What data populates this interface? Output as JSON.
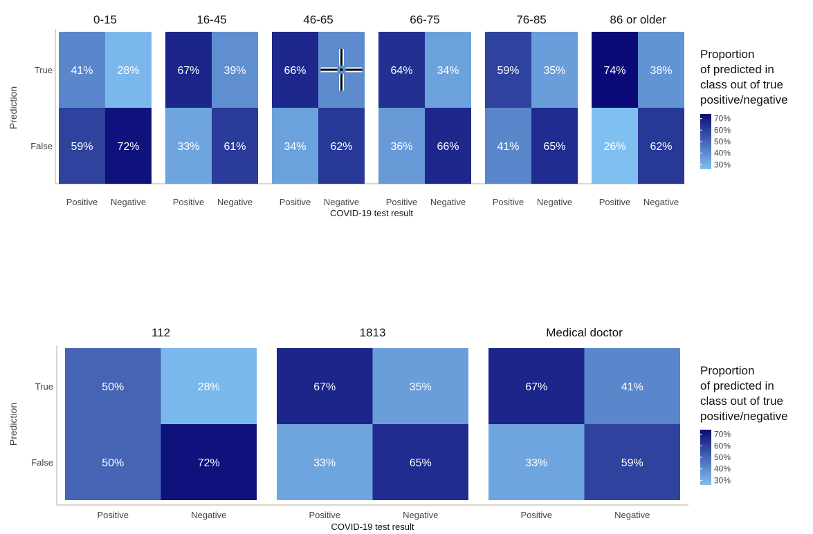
{
  "colors": {
    "scale_low": "#7fc0f0",
    "scale_high": "#0a0a78",
    "cell_text": "#ffffff",
    "axis_line": "#cfc8b8",
    "text": "#444444",
    "title_text": "#111111"
  },
  "shared": {
    "y_axis_title": "Prediction",
    "y_categories": [
      "True",
      "False"
    ],
    "legend_title": "Proportion\nof predicted in\n class out of true\npositive/negative",
    "legend_ticks": [
      "70%",
      "60%",
      "50%",
      "40%",
      "30%"
    ],
    "legend_range": [
      26,
      74
    ]
  },
  "chart_data": [
    {
      "type": "heatmap",
      "x_axis_title": "COVID-19 test result",
      "y_axis_title": "Prediction",
      "x_categories": [
        "Positive",
        "Negative"
      ],
      "y_categories": [
        "True",
        "False"
      ],
      "facets": [
        {
          "title": "0-15",
          "values": [
            [
              41,
              28
            ],
            [
              59,
              72
            ]
          ]
        },
        {
          "title": "16-45",
          "values": [
            [
              67,
              39
            ],
            [
              33,
              61
            ]
          ]
        },
        {
          "title": "46-65",
          "values": [
            [
              66,
              null
            ],
            [
              34,
              62
            ]
          ]
        },
        {
          "title": "66-75",
          "values": [
            [
              64,
              34
            ],
            [
              36,
              66
            ]
          ]
        },
        {
          "title": "76-85",
          "values": [
            [
              59,
              35
            ],
            [
              41,
              65
            ]
          ]
        },
        {
          "title": "86 or older",
          "values": [
            [
              74,
              38
            ],
            [
              26,
              62
            ]
          ]
        }
      ]
    },
    {
      "type": "heatmap",
      "x_axis_title": "COVID-19 test result",
      "y_axis_title": "Prediction",
      "x_categories": [
        "Positive",
        "Negative"
      ],
      "y_categories": [
        "True",
        "False"
      ],
      "facets": [
        {
          "title": "112",
          "values": [
            [
              50,
              28
            ],
            [
              50,
              72
            ]
          ]
        },
        {
          "title": "1813",
          "values": [
            [
              67,
              35
            ],
            [
              33,
              65
            ]
          ]
        },
        {
          "title": "Medical doctor",
          "values": [
            [
              67,
              41
            ],
            [
              33,
              59
            ]
          ]
        }
      ]
    }
  ]
}
